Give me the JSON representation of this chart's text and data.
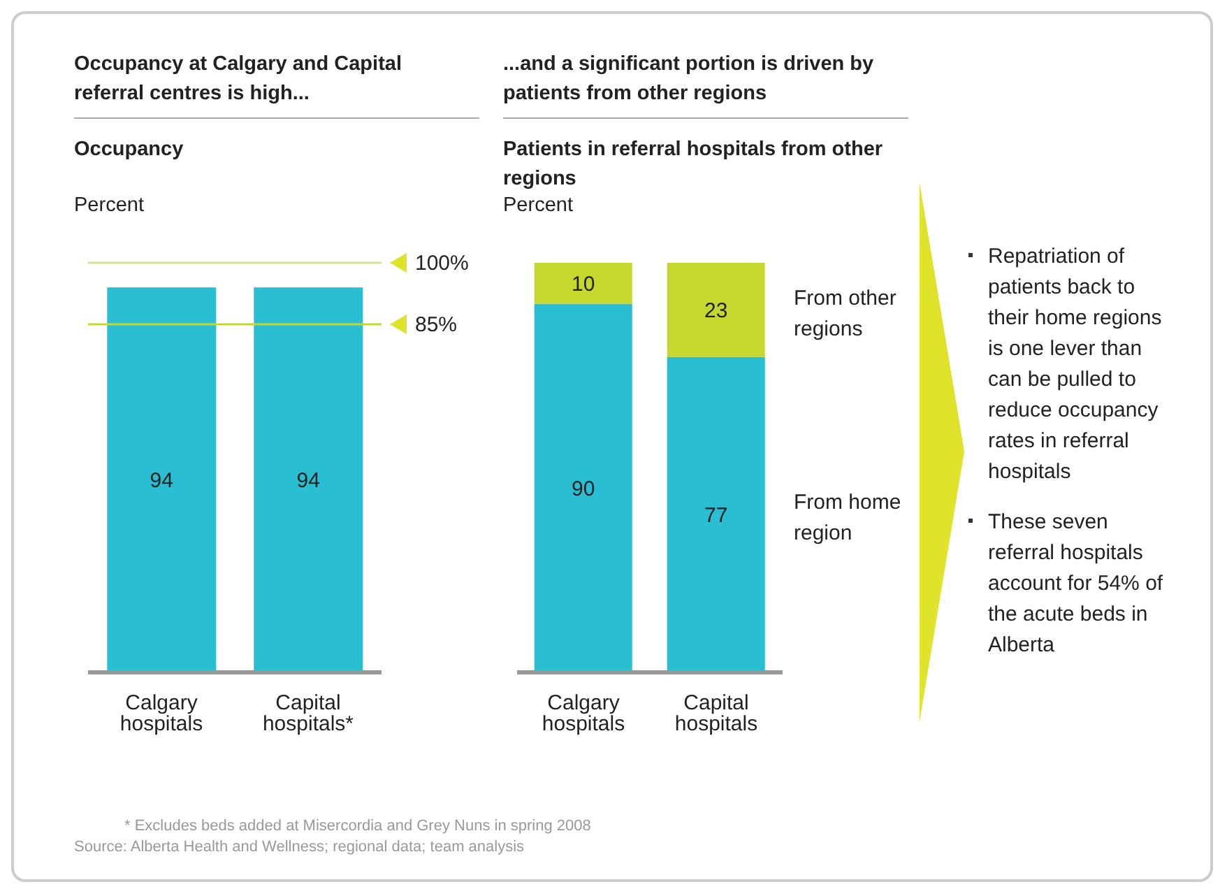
{
  "chart_data": [
    {
      "type": "bar",
      "title": "Occupancy at Calgary and Capital referral centres is high...",
      "subtitle": "Occupancy",
      "ylabel": "Percent",
      "categories": [
        "Calgary hospitals",
        "Capital hospitals*"
      ],
      "values": [
        94,
        94
      ],
      "color": "#29bed2",
      "ylim": [
        0,
        100
      ],
      "data_labels": true,
      "legend": false,
      "tick_labels": "x",
      "ref_lines": [
        {
          "axis": "y",
          "value": 100,
          "label": "100%",
          "color": "#d6e58a"
        },
        {
          "axis": "y",
          "value": 85,
          "label": "85%",
          "color": "#c5d82e"
        }
      ],
      "annotations": [
        "* Excludes beds added at Misercordia and Grey Nuns in spring 2008",
        "Source: Alberta Health and Wellness; regional data; team analysis"
      ]
    },
    {
      "type": "bar",
      "title": "...and a significant portion is driven by patients from other regions",
      "subtitle": "Patients in referral hospitals from other regions",
      "ylabel": "Percent",
      "categories": [
        "Calgary hospitals",
        "Capital hospitals"
      ],
      "stacked": true,
      "ylim": [
        0,
        100
      ],
      "data_labels": true,
      "legend": "right",
      "tick_labels": "x",
      "series": [
        {
          "name": "From home region",
          "color": "#29bed2",
          "values": [
            90,
            77
          ]
        },
        {
          "name": "From other regions",
          "color": "#c5d82e",
          "values": [
            10,
            23
          ]
        }
      ]
    },
    {
      "type": "other",
      "annotations": [
        "Repatriation of patients back to their home regions is one lever than can be pulled to reduce occupancy rates in referral hospitals",
        "These seven referral hospitals account for 54% of the acute beds in Alberta"
      ]
    }
  ]
}
